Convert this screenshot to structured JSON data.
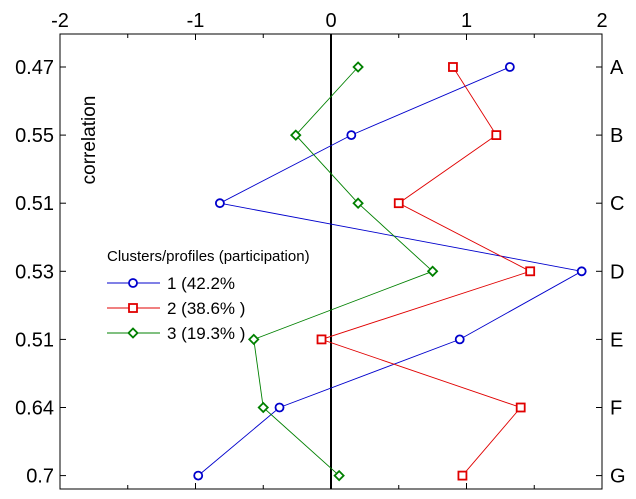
{
  "chart_data": {
    "type": "line",
    "orientation": "horizontal-profile",
    "x_axis": {
      "range": [
        -2,
        2
      ],
      "ticks": [
        -2,
        -1,
        0,
        1,
        2
      ],
      "tick_labels": [
        "-2",
        "-1",
        "0",
        "1",
        "2"
      ]
    },
    "rows": [
      "A",
      "B",
      "C",
      "D",
      "E",
      "F",
      "G"
    ],
    "correlations": [
      "0.47",
      "0.55",
      "0.51",
      "0.53",
      "0.51",
      "0.64",
      "0.7"
    ],
    "correlation_label": "correlation",
    "legend_title": "Clusters/profiles (participation)",
    "series": [
      {
        "name": "1 (42.2%",
        "marker": "circle",
        "color": "#0000cc",
        "values": [
          1.32,
          0.15,
          -0.82,
          1.85,
          0.95,
          -0.38,
          -0.98
        ]
      },
      {
        "name": "2 (38.6% )",
        "marker": "square",
        "color": "#e00000",
        "values": [
          0.9,
          1.22,
          0.5,
          1.47,
          -0.07,
          1.4,
          0.97
        ]
      },
      {
        "name": "3 (19.3% )",
        "marker": "diamond",
        "color": "#008000",
        "values": [
          0.2,
          -0.26,
          0.2,
          0.75,
          -0.57,
          -0.5,
          0.06
        ]
      }
    ]
  }
}
